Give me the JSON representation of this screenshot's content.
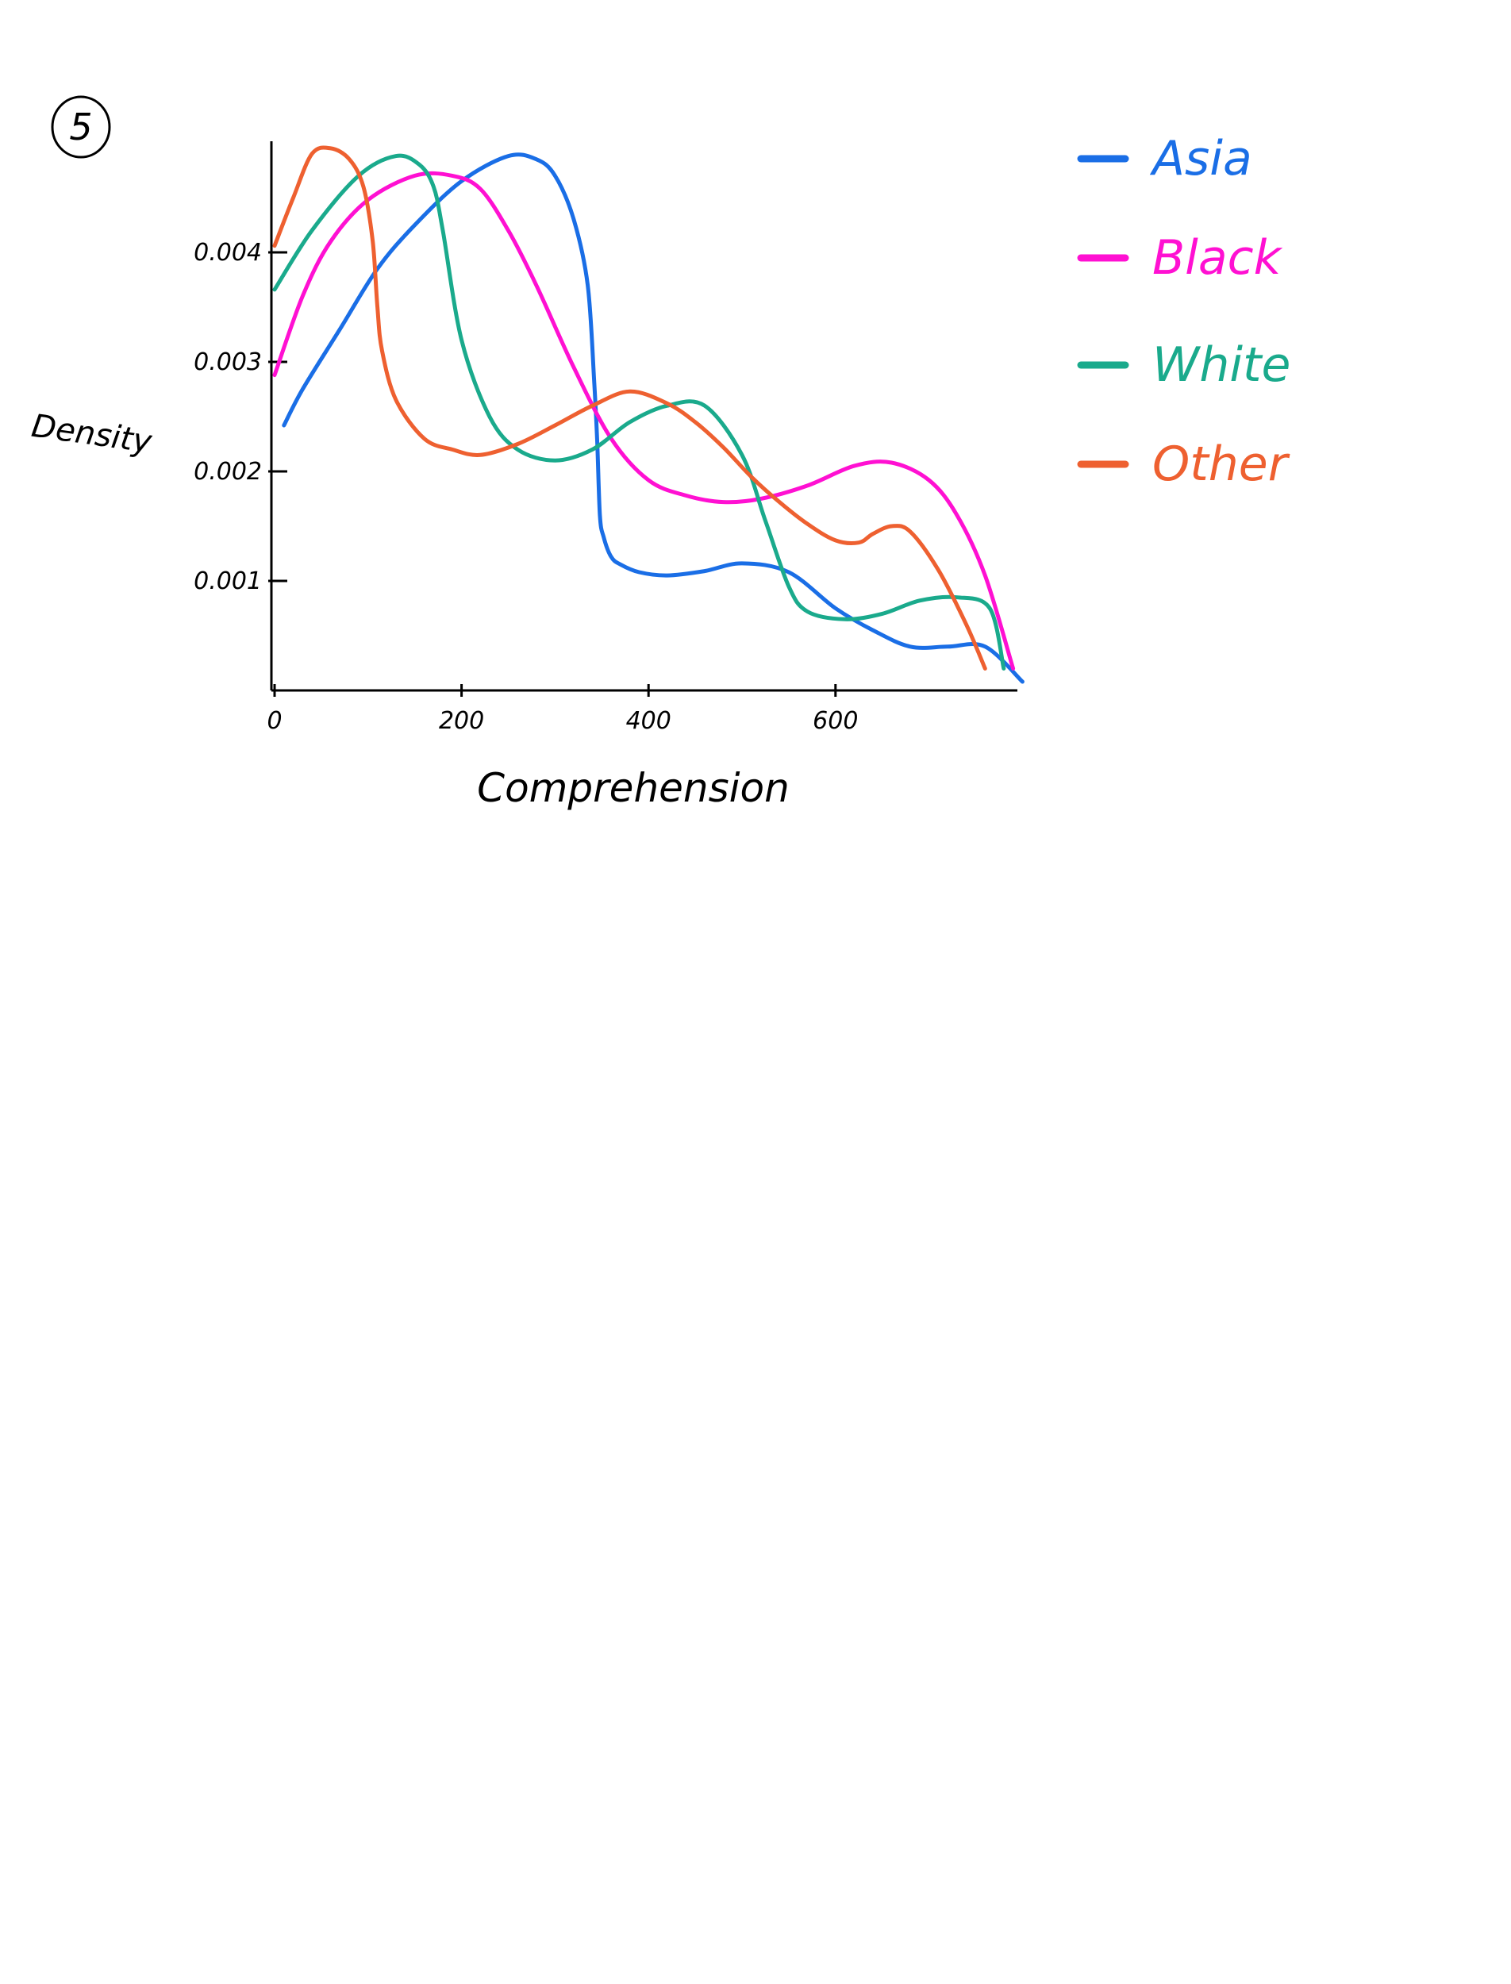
{
  "figure_number": "5",
  "chart_data": {
    "type": "line",
    "title": "",
    "xlabel": "Comprehension",
    "ylabel": "Density",
    "xlim": [
      0,
      800
    ],
    "ylim": [
      0,
      0.0047
    ],
    "x_ticks": [
      {
        "value": 0,
        "label": "0"
      },
      {
        "value": 200,
        "label": "200"
      },
      {
        "value": 400,
        "label": "400"
      },
      {
        "value": 600,
        "label": "600"
      }
    ],
    "y_ticks": [
      {
        "value": 0.001,
        "label": "0.001"
      },
      {
        "value": 0.002,
        "label": "0.002"
      },
      {
        "value": 0.003,
        "label": "0.003"
      },
      {
        "value": 0.004,
        "label": "0.004"
      }
    ],
    "legend_position": "top-right",
    "series": [
      {
        "name": "Asia",
        "color": "#1a6ee6",
        "x": [
          10,
          30,
          70,
          110,
          150,
          200,
          250,
          280,
          300,
          320,
          335,
          342,
          345,
          348,
          352,
          360,
          370,
          390,
          420,
          460,
          500,
          550,
          600,
          640,
          680,
          720,
          760,
          800
        ],
        "y": [
          0.00242,
          0.00275,
          0.0033,
          0.00385,
          0.00425,
          0.00465,
          0.00488,
          0.00485,
          0.0047,
          0.0043,
          0.0037,
          0.0028,
          0.0023,
          0.0016,
          0.0014,
          0.00122,
          0.00115,
          0.00108,
          0.00105,
          0.00109,
          0.00116,
          0.00108,
          0.00075,
          0.00055,
          0.0004,
          0.0004,
          0.0004,
          8e-05
        ]
      },
      {
        "name": "Black",
        "color": "#ff10d2",
        "x": [
          0,
          30,
          60,
          100,
          150,
          190,
          220,
          250,
          280,
          320,
          360,
          400,
          440,
          480,
          520,
          570,
          620,
          660,
          700,
          730,
          760,
          790
        ],
        "y": [
          0.00288,
          0.0036,
          0.0041,
          0.00448,
          0.0047,
          0.0047,
          0.00458,
          0.0042,
          0.0037,
          0.00295,
          0.0023,
          0.00192,
          0.00178,
          0.00172,
          0.00175,
          0.00187,
          0.00205,
          0.00208,
          0.00192,
          0.0016,
          0.00105,
          0.0002
        ]
      },
      {
        "name": "White",
        "color": "#1aaa8c",
        "x": [
          0,
          40,
          90,
          130,
          155,
          170,
          180,
          200,
          230,
          260,
          300,
          340,
          380,
          420,
          460,
          500,
          525,
          550,
          570,
          610,
          650,
          690,
          730,
          765,
          780
        ],
        "y": [
          0.00366,
          0.0042,
          0.0047,
          0.00488,
          0.0048,
          0.0046,
          0.0042,
          0.0032,
          0.0025,
          0.0022,
          0.0021,
          0.0022,
          0.00245,
          0.0026,
          0.0026,
          0.00215,
          0.00155,
          0.00095,
          0.00072,
          0.00065,
          0.0007,
          0.00082,
          0.00085,
          0.00075,
          0.0002
        ]
      },
      {
        "name": "Other",
        "color": "#ee6030",
        "x": [
          0,
          20,
          40,
          60,
          80,
          95,
          105,
          110,
          115,
          130,
          160,
          190,
          220,
          260,
          300,
          340,
          380,
          420,
          450,
          480,
          510,
          540,
          570,
          600,
          625,
          640,
          660,
          680,
          710,
          740,
          760
        ],
        "y": [
          0.00406,
          0.0045,
          0.0049,
          0.00495,
          0.00485,
          0.0046,
          0.0041,
          0.0035,
          0.0031,
          0.00265,
          0.0023,
          0.0022,
          0.00215,
          0.00225,
          0.00242,
          0.0026,
          0.00273,
          0.00262,
          0.00245,
          0.00222,
          0.00195,
          0.00172,
          0.00152,
          0.00137,
          0.00135,
          0.00143,
          0.0015,
          0.00145,
          0.0011,
          0.0006,
          0.0002
        ]
      }
    ]
  }
}
